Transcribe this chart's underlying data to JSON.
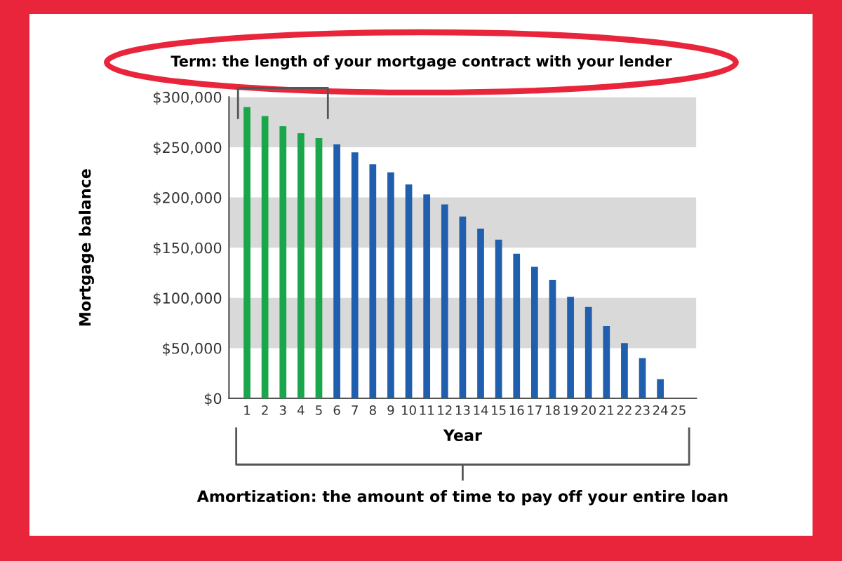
{
  "chart_data": {
    "type": "bar",
    "xlabel": "Year",
    "ylabel": "Mortgage balance",
    "categories": [
      "1",
      "2",
      "3",
      "4",
      "5",
      "6",
      "7",
      "8",
      "9",
      "10",
      "11",
      "12",
      "13",
      "14",
      "15",
      "16",
      "17",
      "18",
      "19",
      "20",
      "21",
      "22",
      "23",
      "24",
      "25"
    ],
    "values": [
      290000,
      281000,
      271000,
      264000,
      259000,
      253000,
      245000,
      233000,
      225000,
      213000,
      203000,
      193000,
      181000,
      169000,
      158000,
      144000,
      131000,
      118000,
      101000,
      91000,
      72000,
      55000,
      40000,
      19000,
      0
    ],
    "colors": [
      "#1aa64a",
      "#1aa64a",
      "#1aa64a",
      "#1aa64a",
      "#1aa64a",
      "#1f5fad",
      "#1f5fad",
      "#1f5fad",
      "#1f5fad",
      "#1f5fad",
      "#1f5fad",
      "#1f5fad",
      "#1f5fad",
      "#1f5fad",
      "#1f5fad",
      "#1f5fad",
      "#1f5fad",
      "#1f5fad",
      "#1f5fad",
      "#1f5fad",
      "#1f5fad",
      "#1f5fad",
      "#1f5fad",
      "#1f5fad",
      "#1f5fad"
    ],
    "ylim": [
      0,
      300000
    ],
    "yticks": [
      {
        "value": 0,
        "label": "$0"
      },
      {
        "value": 50000,
        "label": "$50,000"
      },
      {
        "value": 100000,
        "label": "$100,000"
      },
      {
        "value": 150000,
        "label": "$150,000"
      },
      {
        "value": 200000,
        "label": "$200,000"
      },
      {
        "value": 250000,
        "label": "$250,000"
      },
      {
        "value": 300000,
        "label": "$300,000"
      }
    ],
    "bands": [
      {
        "axis": "y",
        "from": 250000,
        "to": 300000,
        "color": "#d9d9d9"
      },
      {
        "axis": "y",
        "from": 150000,
        "to": 200000,
        "color": "#d9d9d9"
      },
      {
        "axis": "y",
        "from": 50000,
        "to": 100000,
        "color": "#d9d9d9"
      }
    ],
    "annotations": [
      "Term: the length of your mortgage contract with your lender",
      "Amortization: the amount of time to pay off your entire loan"
    ],
    "grid": false
  }
}
